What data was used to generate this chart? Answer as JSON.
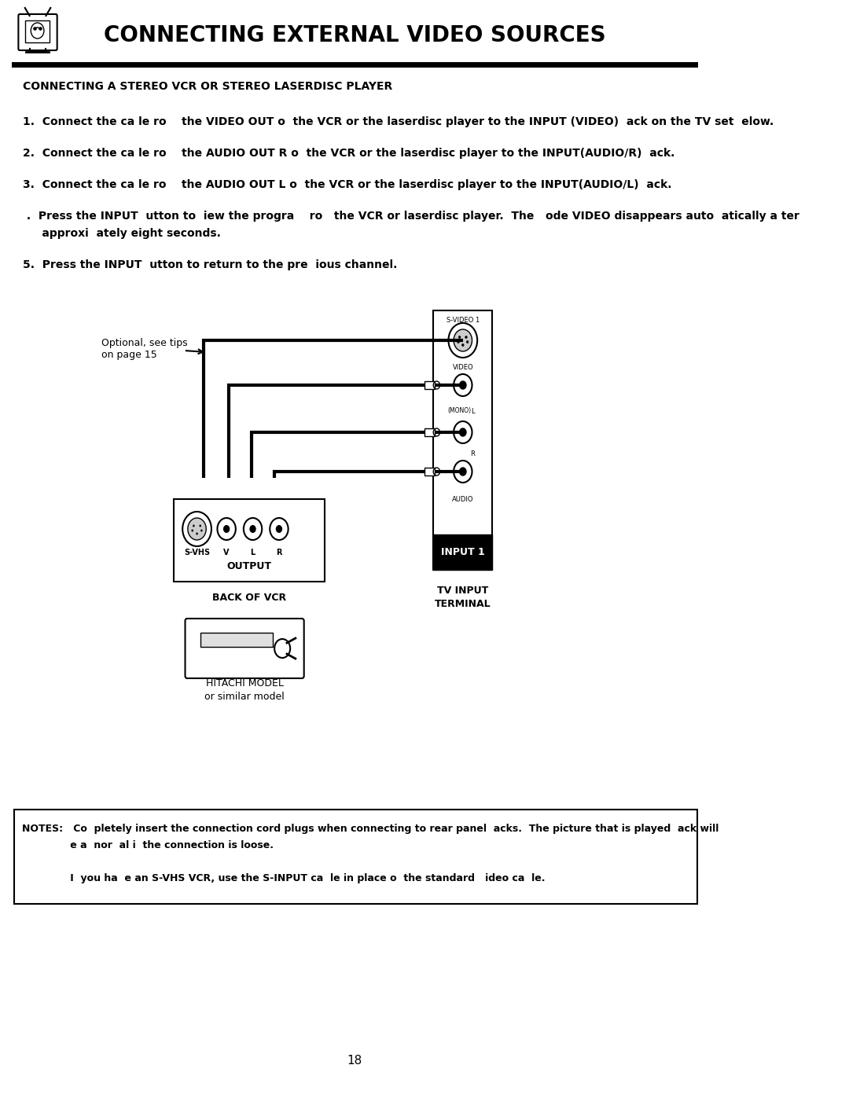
{
  "title": "CONNECTING EXTERNAL VIDEO SOURCES",
  "section_title": "CONNECTING A STEREO VCR OR STEREO LASERDISC PLAYER",
  "instructions": [
    "1.  Connect the ca le ro    the VIDEO OUT o  the VCR or the laserdisc player to the INPUT (VIDEO)  ack on the TV set  elow.",
    "2.  Connect the ca le ro    the AUDIO OUT R o  the VCR or the laserdisc player to the INPUT(AUDIO/R)  ack.",
    "3.  Connect the ca le ro    the AUDIO OUT L o  the VCR or the laserdisc player to the INPUT(AUDIO/L)  ack.",
    " .  Press the INPUT  utton to  iew the progra    ro   the VCR or laserdisc player.  The   ode VIDEO disappears auto  atically a ter\n     approxi  ately eight seconds.",
    "5.  Press the INPUT  utton to return to the pre  ious channel."
  ],
  "optional_label": "Optional, see tips\non page 15",
  "diagram_labels": {
    "svideo": "S-VIDEO 1",
    "video": "VIDEO",
    "mono": "(MONO)",
    "l_label": "L",
    "r_label": "R",
    "audio": "AUDIO",
    "input1": "INPUT 1",
    "tv_terminal": "TV INPUT\nTERMINAL",
    "svhs": "S-VHS",
    "v": "V",
    "l": "L",
    "r_out": "R",
    "output": "OUTPUT",
    "back_vcr": "BACK OF VCR",
    "hitachi": "HITACHI MODEL\nor similar model"
  },
  "notes_text": "NOTES:   Co  pletely insert the connection cord plugs when connecting to rear panel  acks.  The picture that is played  ack will\n              e a  nor  al i  the connection is loose.\n\n              I  you ha  e an S-VHS VCR, use the S-INPUT ca  le in place o  the standard   ideo ca  le.",
  "bg_color": "#ffffff",
  "text_color": "#000000",
  "page_number": "18"
}
